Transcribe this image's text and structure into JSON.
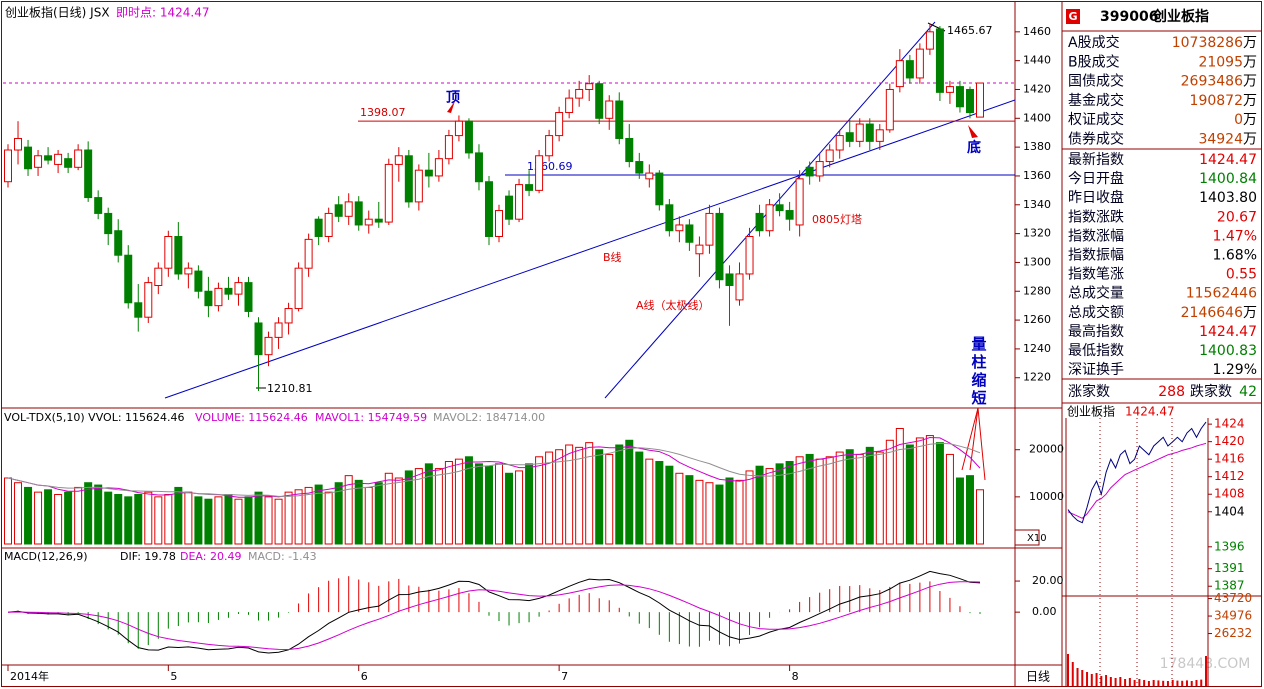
{
  "chart_data": {
    "type": "candlestick",
    "title": "创业板指(日线) JSX",
    "subtitle": "即时点: 1424.47",
    "categories": [
      "2014年",
      null,
      null,
      null,
      null,
      null,
      null,
      null,
      null,
      null,
      null,
      null,
      null,
      null,
      null,
      null,
      "5",
      null,
      null,
      null,
      null,
      null,
      null,
      null,
      null,
      null,
      null,
      null,
      null,
      null,
      null,
      null,
      null,
      null,
      null,
      "6",
      null,
      null,
      null,
      null,
      null,
      null,
      null,
      null,
      null,
      null,
      null,
      null,
      null,
      null,
      null,
      null,
      null,
      null,
      null,
      "7",
      null,
      null,
      null,
      null,
      null,
      null,
      null,
      null,
      null,
      null,
      null,
      null,
      null,
      null,
      null,
      null,
      null,
      null,
      null,
      null,
      null,
      null,
      "8",
      null,
      null,
      null,
      null,
      null,
      null,
      null,
      null,
      null,
      null,
      null,
      null,
      null,
      null,
      null,
      null,
      null,
      null,
      null
    ],
    "ohlc": [
      [
        1356,
        1382,
        1352,
        1378
      ],
      [
        1378,
        1398,
        1368,
        1386
      ],
      [
        1380,
        1385,
        1360,
        1365
      ],
      [
        1366,
        1378,
        1360,
        1374
      ],
      [
        1374,
        1380,
        1368,
        1371
      ],
      [
        1368,
        1378,
        1362,
        1375
      ],
      [
        1372,
        1376,
        1362,
        1366
      ],
      [
        1366,
        1382,
        1364,
        1378
      ],
      [
        1378,
        1384,
        1342,
        1345
      ],
      [
        1345,
        1350,
        1330,
        1334
      ],
      [
        1334,
        1338,
        1312,
        1320
      ],
      [
        1322,
        1330,
        1300,
        1305
      ],
      [
        1305,
        1312,
        1268,
        1272
      ],
      [
        1272,
        1285,
        1252,
        1262
      ],
      [
        1262,
        1290,
        1258,
        1286
      ],
      [
        1284,
        1300,
        1278,
        1296
      ],
      [
        1296,
        1322,
        1290,
        1318
      ],
      [
        1318,
        1328,
        1288,
        1292
      ],
      [
        1292,
        1300,
        1282,
        1296
      ],
      [
        1294,
        1298,
        1275,
        1280
      ],
      [
        1280,
        1290,
        1262,
        1270
      ],
      [
        1270,
        1286,
        1266,
        1282
      ],
      [
        1282,
        1290,
        1274,
        1278
      ],
      [
        1278,
        1290,
        1270,
        1286
      ],
      [
        1286,
        1290,
        1262,
        1266
      ],
      [
        1258,
        1262,
        1210.81,
        1236
      ],
      [
        1236,
        1252,
        1228,
        1248
      ],
      [
        1248,
        1262,
        1240,
        1258
      ],
      [
        1258,
        1272,
        1250,
        1268
      ],
      [
        1268,
        1300,
        1266,
        1296
      ],
      [
        1296,
        1320,
        1290,
        1316
      ],
      [
        1330,
        1332,
        1312,
        1318
      ],
      [
        1318,
        1338,
        1314,
        1334
      ],
      [
        1340,
        1346,
        1328,
        1332
      ],
      [
        1332,
        1348,
        1326,
        1342
      ],
      [
        1342,
        1346,
        1322,
        1326
      ],
      [
        1326,
        1336,
        1320,
        1330
      ],
      [
        1330,
        1342,
        1324,
        1328
      ],
      [
        1328,
        1372,
        1326,
        1368
      ],
      [
        1368,
        1380,
        1356,
        1374
      ],
      [
        1374,
        1378,
        1338,
        1342
      ],
      [
        1342,
        1368,
        1336,
        1364
      ],
      [
        1364,
        1376,
        1352,
        1360
      ],
      [
        1360,
        1378,
        1356,
        1372
      ],
      [
        1372,
        1392,
        1368,
        1388
      ],
      [
        1388,
        1402,
        1384,
        1398
      ],
      [
        1398,
        1400,
        1372,
        1376
      ],
      [
        1376,
        1382,
        1350,
        1356
      ],
      [
        1356,
        1360,
        1312,
        1318
      ],
      [
        1318,
        1340,
        1314,
        1336
      ],
      [
        1346,
        1350,
        1326,
        1330
      ],
      [
        1330,
        1358,
        1328,
        1354
      ],
      [
        1354,
        1364,
        1346,
        1350
      ],
      [
        1350,
        1378,
        1348,
        1374
      ],
      [
        1374,
        1392,
        1370,
        1388
      ],
      [
        1388,
        1408,
        1384,
        1404
      ],
      [
        1404,
        1420,
        1400,
        1414
      ],
      [
        1414,
        1426,
        1408,
        1420
      ],
      [
        1420,
        1430,
        1412,
        1424
      ],
      [
        1424,
        1426,
        1396,
        1400
      ],
      [
        1400,
        1416,
        1392,
        1412
      ],
      [
        1412,
        1418,
        1382,
        1386
      ],
      [
        1386,
        1396,
        1366,
        1370
      ],
      [
        1370,
        1376,
        1358,
        1362
      ],
      [
        1358,
        1368,
        1352,
        1362
      ],
      [
        1362,
        1364,
        1336,
        1340
      ],
      [
        1340,
        1344,
        1318,
        1322
      ],
      [
        1322,
        1332,
        1314,
        1326
      ],
      [
        1326,
        1330,
        1308,
        1314
      ],
      [
        1306,
        1318,
        1290,
        1312
      ],
      [
        1312,
        1340,
        1306,
        1334
      ],
      [
        1334,
        1338,
        1282,
        1288
      ],
      [
        1292,
        1298,
        1256,
        1284
      ],
      [
        1274,
        1300,
        1270,
        1292
      ],
      [
        1292,
        1324,
        1288,
        1318
      ],
      [
        1334,
        1340,
        1318,
        1322
      ],
      [
        1322,
        1344,
        1318,
        1340
      ],
      [
        1340,
        1348,
        1332,
        1336
      ],
      [
        1336,
        1342,
        1322,
        1330
      ],
      [
        1326,
        1364,
        1318,
        1358
      ],
      [
        1366,
        1370,
        1354,
        1360
      ],
      [
        1360,
        1376,
        1356,
        1370
      ],
      [
        1370,
        1382,
        1366,
        1378
      ],
      [
        1378,
        1392,
        1372,
        1388
      ],
      [
        1390,
        1400,
        1380,
        1384
      ],
      [
        1384,
        1400,
        1380,
        1396
      ],
      [
        1396,
        1400,
        1378,
        1384
      ],
      [
        1384,
        1396,
        1378,
        1392
      ],
      [
        1392,
        1424,
        1390,
        1420
      ],
      [
        1422,
        1448,
        1418,
        1440
      ],
      [
        1440,
        1444,
        1424,
        1428
      ],
      [
        1428,
        1452,
        1424,
        1448
      ],
      [
        1448,
        1465.67,
        1444,
        1460
      ],
      [
        1462,
        1464,
        1412,
        1418
      ],
      [
        1418,
        1426,
        1410,
        1422
      ],
      [
        1422,
        1426,
        1404,
        1408
      ],
      [
        1420,
        1422,
        1400,
        1404
      ],
      [
        1400.84,
        1424.47,
        1400.83,
        1424.47
      ]
    ],
    "up_color": "#e00000",
    "down_color": "#008000",
    "ylim": [
      1199,
      1480
    ],
    "yticks": [
      1220,
      1240,
      1260,
      1280,
      1300,
      1320,
      1340,
      1360,
      1380,
      1400,
      1420,
      1440,
      1460
    ],
    "hlines": [
      {
        "value": 1398.07,
        "color": "#d00000"
      },
      {
        "value": 1360.69,
        "color": "#0000c0"
      },
      {
        "value": 1424.47,
        "color": "#d000d0",
        "dash": true
      }
    ],
    "annotations": [
      "顶",
      "底",
      "B线",
      "A线（太极线）",
      "0805灯塔",
      "量柱缩短"
    ],
    "volume_panel": {
      "labels": [
        "VOL-TDX(5,10) VVOL: 115624.46",
        "VOLUME: 115624.46",
        "MAVOL1: 154749.59",
        "MAVOL2: 184714.00"
      ],
      "values": [
        14000,
        13000,
        12000,
        11000,
        11500,
        10500,
        11000,
        12000,
        13000,
        12500,
        11000,
        10500,
        10000,
        10500,
        11000,
        10000,
        10500,
        12000,
        11000,
        10000,
        9500,
        10000,
        10500,
        9500,
        10000,
        11000,
        10000,
        9500,
        11000,
        11500,
        12000,
        12500,
        11000,
        13000,
        14500,
        13500,
        12000,
        13000,
        15000,
        14000,
        15500,
        16000,
        17000,
        16000,
        17500,
        18000,
        18500,
        17000,
        16500,
        17000,
        15000,
        15500,
        17000,
        18500,
        19500,
        20000,
        21000,
        20500,
        21500,
        20000,
        19000,
        21000,
        22000,
        19500,
        18000,
        17500,
        16500,
        15000,
        14500,
        13500,
        13000,
        12500,
        14000,
        13500,
        15500,
        16500,
        16000,
        17000,
        17500,
        18500,
        19000,
        18000,
        18500,
        19500,
        20000,
        19000,
        20500,
        19500,
        22000,
        24500,
        21000,
        22500,
        23000,
        21500,
        19000,
        14000,
        14500,
        11500
      ],
      "ylim": [
        0,
        28000
      ],
      "yticks": [
        10000,
        20000
      ],
      "scale_label": "X10",
      "ma": [
        {
          "period": 5,
          "color": "#d000d0"
        },
        {
          "period": 10,
          "color": "#909090"
        }
      ]
    },
    "macd_panel": {
      "labels": [
        "MACD(12,26,9)",
        "DIF: 19.78",
        "DEA: 20.49",
        "MACD: -1.43"
      ],
      "fast": 12,
      "slow": 26,
      "signal": 9,
      "ylim": [
        -34,
        38.7
      ],
      "yticks": [
        {
          "value": 20,
          "label": "20.00"
        },
        {
          "value": 0,
          "label": "0.00"
        }
      ],
      "dif_color": "#000000",
      "dea_color": "#d000d0"
    },
    "period_label": "日线",
    "watermark": "178448.COM"
  },
  "quote_panel": {
    "badge": "G",
    "code": "399006",
    "name": "创业板指",
    "trade_rows": [
      {
        "label": "A股成交",
        "value": "10738286",
        "unit": "万"
      },
      {
        "label": "B股成交",
        "value": "21095",
        "unit": "万"
      },
      {
        "label": "国债成交",
        "value": "2693486",
        "unit": "万"
      },
      {
        "label": "基金成交",
        "value": "190872",
        "unit": "万"
      },
      {
        "label": "权证成交",
        "value": "0",
        "unit": "万"
      },
      {
        "label": "债券成交",
        "value": "34924",
        "unit": "万"
      }
    ],
    "index_rows": [
      {
        "label": "最新指数",
        "value": "1424.47",
        "color": "#e00000"
      },
      {
        "label": "今日开盘",
        "value": "1400.84",
        "color": "#008000"
      },
      {
        "label": "昨日收盘",
        "value": "1403.80",
        "color": "#000000"
      },
      {
        "label": "指数涨跌",
        "value": "20.67",
        "color": "#e00000"
      },
      {
        "label": "指数涨幅",
        "value": "1.47%",
        "color": "#e00000"
      },
      {
        "label": "指数振幅",
        "value": "1.68%",
        "color": "#000000"
      },
      {
        "label": "指数笔涨",
        "value": "0.55",
        "color": "#e00000"
      },
      {
        "label": "总成交量",
        "value": "11562446",
        "color": "#c04000"
      },
      {
        "label": "总成交额",
        "value": "2146646",
        "unit": "万",
        "color": "#c04000"
      },
      {
        "label": "最高指数",
        "value": "1424.47",
        "color": "#e00000"
      },
      {
        "label": "最低指数",
        "value": "1400.83",
        "color": "#008000"
      },
      {
        "label": "深证换手",
        "value": "1.29%",
        "color": "#000000"
      }
    ],
    "advance": {
      "label": "涨家数",
      "value": "288",
      "color": "#e00000"
    },
    "decline": {
      "label": "跌家数",
      "value": "42",
      "color": "#008000"
    },
    "trade_color": "#c04000"
  },
  "intraday": {
    "title": "创业板指",
    "last": "1424.47",
    "price": [
      1404.5,
      1403,
      1402,
      1401.5,
      1405,
      1409,
      1411,
      1408,
      1413,
      1416,
      1414,
      1417,
      1418,
      1415,
      1416,
      1419,
      1418,
      1417,
      1419,
      1420,
      1421,
      1419,
      1420,
      1421,
      1420,
      1422,
      1423,
      1421,
      1423,
      1424.47
    ],
    "avg": [
      1404,
      1403.5,
      1403,
      1402.5,
      1403.5,
      1405,
      1406.5,
      1407,
      1408,
      1409.5,
      1410.5,
      1411.5,
      1412.5,
      1413,
      1413.5,
      1414,
      1414.5,
      1415,
      1415.5,
      1416,
      1416.5,
      1417,
      1417.3,
      1417.6,
      1418,
      1418.3,
      1418.6,
      1419,
      1419.3,
      1419.6
    ],
    "volume": [
      16000,
      12000,
      9000,
      8000,
      7000,
      6000,
      6500,
      5000,
      5500,
      4500,
      4000,
      4500,
      3500,
      4000,
      3000,
      3500,
      3000,
      2500,
      3000,
      2800,
      2600,
      2500,
      3000,
      2700,
      2600,
      2800,
      2500,
      3000,
      3200,
      15000
    ],
    "price_color": "#000080",
    "avg_color": "#d000d0",
    "volume_color": "#e00000",
    "ylim": [
      1385,
      1425.4
    ],
    "yticks": [
      {
        "value": 1424,
        "color": "#e00000"
      },
      {
        "value": 1420,
        "color": "#e00000"
      },
      {
        "value": 1416,
        "color": "#e00000"
      },
      {
        "value": 1412,
        "color": "#e00000"
      },
      {
        "value": 1408,
        "color": "#e00000"
      },
      {
        "value": 1404,
        "color": "#000000"
      },
      {
        "value": 1396,
        "color": "#008000"
      },
      {
        "value": 1391,
        "color": "#008000"
      },
      {
        "value": 1387,
        "color": "#008000"
      }
    ],
    "vol_ylim": [
      0,
      44500
    ],
    "vol_yticks": [
      43720,
      34976,
      26232
    ],
    "vol_tick_color": "#c04000"
  }
}
